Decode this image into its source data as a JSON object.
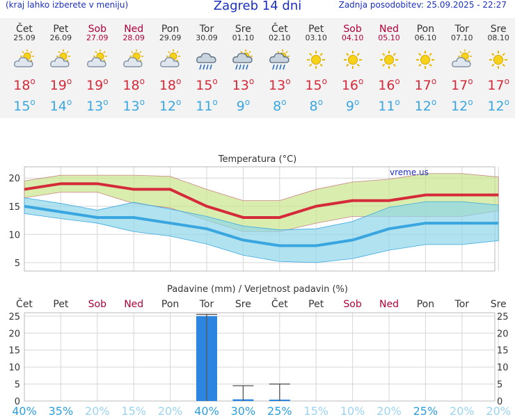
{
  "header": {
    "location_hint": "(kraj lahko izberete v meniju)",
    "title": "Zagreb 14 dni",
    "updated": "Zadnja posodobitev: 25.09.2025 - 22:27"
  },
  "forecast": [
    {
      "day": "Čet",
      "date": "25.09",
      "weekend": false,
      "icon": "partly-cloudy-sun-icon",
      "tmax": "18",
      "tmin": "15"
    },
    {
      "day": "Pet",
      "date": "26.09",
      "weekend": false,
      "icon": "partly-cloudy-sun-icon",
      "tmax": "19",
      "tmin": "14"
    },
    {
      "day": "Sob",
      "date": "27.09",
      "weekend": true,
      "icon": "partly-cloudy-sun-icon",
      "tmax": "19",
      "tmin": "13"
    },
    {
      "day": "Ned",
      "date": "28.09",
      "weekend": true,
      "icon": "partly-cloudy-sun-icon",
      "tmax": "18",
      "tmin": "13"
    },
    {
      "day": "Pon",
      "date": "29.09",
      "weekend": false,
      "icon": "partly-cloudy-sun-icon",
      "tmax": "18",
      "tmin": "12"
    },
    {
      "day": "Tor",
      "date": "30.09",
      "weekend": false,
      "icon": "rain-cloud-icon",
      "tmax": "15",
      "tmin": "11"
    },
    {
      "day": "Sre",
      "date": "01.10",
      "weekend": false,
      "icon": "sun-rain-cloud-icon",
      "tmax": "13",
      "tmin": "9"
    },
    {
      "day": "Čet",
      "date": "02.10",
      "weekend": false,
      "icon": "sun-rain-cloud-icon",
      "tmax": "13",
      "tmin": "8"
    },
    {
      "day": "Pet",
      "date": "03.10",
      "weekend": false,
      "icon": "sun-icon",
      "tmax": "15",
      "tmin": "8"
    },
    {
      "day": "Sob",
      "date": "04.10",
      "weekend": true,
      "icon": "sun-icon",
      "tmax": "16",
      "tmin": "9"
    },
    {
      "day": "Ned",
      "date": "05.10",
      "weekend": true,
      "icon": "sun-icon",
      "tmax": "16",
      "tmin": "11"
    },
    {
      "day": "Pon",
      "date": "06.10",
      "weekend": false,
      "icon": "sun-icon",
      "tmax": "17",
      "tmin": "12"
    },
    {
      "day": "Tor",
      "date": "07.10",
      "weekend": false,
      "icon": "partly-cloudy-sun-icon",
      "tmax": "17",
      "tmin": "12"
    },
    {
      "day": "Sre",
      "date": "08.10",
      "weekend": false,
      "icon": "sun-icon",
      "tmax": "17",
      "tmin": "12"
    }
  ],
  "degree_symbol": "o",
  "colors": {
    "max": "#d42a3a",
    "min": "#3aa6e0",
    "weekend": "#b0003a",
    "bar": "#2c86e0",
    "brand": "#1a2fc0"
  },
  "chart_data": [
    {
      "type": "line",
      "title": "Temperatura (°C)",
      "watermark": "vreme.us",
      "x": [
        "25.09",
        "26.09",
        "27.09",
        "28.09",
        "29.09",
        "30.09",
        "01.10",
        "02.10",
        "03.10",
        "04.10",
        "05.10",
        "06.10",
        "07.10",
        "08.10"
      ],
      "ylim": [
        3.5,
        22
      ],
      "yticks": [
        5,
        10,
        15,
        20
      ],
      "grid": true,
      "series": [
        {
          "name": "max",
          "values": [
            18,
            19,
            19,
            18,
            18,
            15,
            13,
            13,
            15,
            16,
            16,
            17,
            17,
            17
          ],
          "color": "#d42a3a"
        },
        {
          "name": "min",
          "values": [
            15,
            14,
            13,
            13,
            12,
            11,
            9,
            8,
            8,
            9,
            11,
            12,
            12,
            12
          ],
          "color": "#3aa6e0"
        }
      ],
      "bands": [
        {
          "name": "max-range",
          "upper": [
            19.5,
            20.5,
            20.5,
            20.5,
            20.3,
            18,
            16,
            16,
            18,
            19.3,
            19.8,
            20.8,
            20.8,
            20.2
          ],
          "lower": [
            16.5,
            17.5,
            17.5,
            15.5,
            14.7,
            12.5,
            10.5,
            10.5,
            12,
            13.2,
            13.2,
            13.2,
            13.2,
            14.2
          ],
          "color": "#c8e68c"
        },
        {
          "name": "min-range",
          "upper": [
            16.5,
            15.5,
            14.3,
            15.7,
            14.5,
            13.2,
            11.5,
            10.8,
            11,
            12.3,
            14.8,
            15.8,
            15.8,
            15.2
          ],
          "lower": [
            13.7,
            12.8,
            12.0,
            10.5,
            9.7,
            8.3,
            6.3,
            5.2,
            5.0,
            5.7,
            7.2,
            8.2,
            8.2,
            8.9
          ],
          "color": "#8fd6ea"
        }
      ]
    },
    {
      "type": "bar",
      "title": "Padavine (mm) / Verjetnost padavin (%)",
      "categories": [
        "Čet",
        "Pet",
        "Sob",
        "Ned",
        "Pon",
        "Tor",
        "Sre",
        "Čet",
        "Pet",
        "Sob",
        "Ned",
        "Pon",
        "Tor",
        "Sre"
      ],
      "weekend": [
        false,
        false,
        true,
        true,
        false,
        false,
        false,
        false,
        false,
        true,
        true,
        false,
        false,
        false
      ],
      "values": [
        0,
        0,
        0,
        0,
        0,
        25,
        0.5,
        0.1,
        0,
        0,
        0,
        0,
        0,
        0
      ],
      "error_high": [
        0,
        0,
        0,
        0,
        0,
        25.5,
        4.5,
        5.0,
        0,
        0,
        0,
        0,
        0,
        0
      ],
      "probability": [
        "40%",
        "35%",
        "20%",
        "15%",
        "20%",
        "40%",
        "30%",
        "25%",
        "15%",
        "10%",
        "20%",
        "25%",
        "20%",
        "20%"
      ],
      "probability_strong": [
        true,
        true,
        false,
        false,
        false,
        true,
        true,
        true,
        false,
        false,
        false,
        true,
        false,
        false
      ],
      "ylim": [
        0,
        26
      ],
      "yticks": [
        0,
        5,
        10,
        15,
        20,
        25
      ]
    }
  ]
}
